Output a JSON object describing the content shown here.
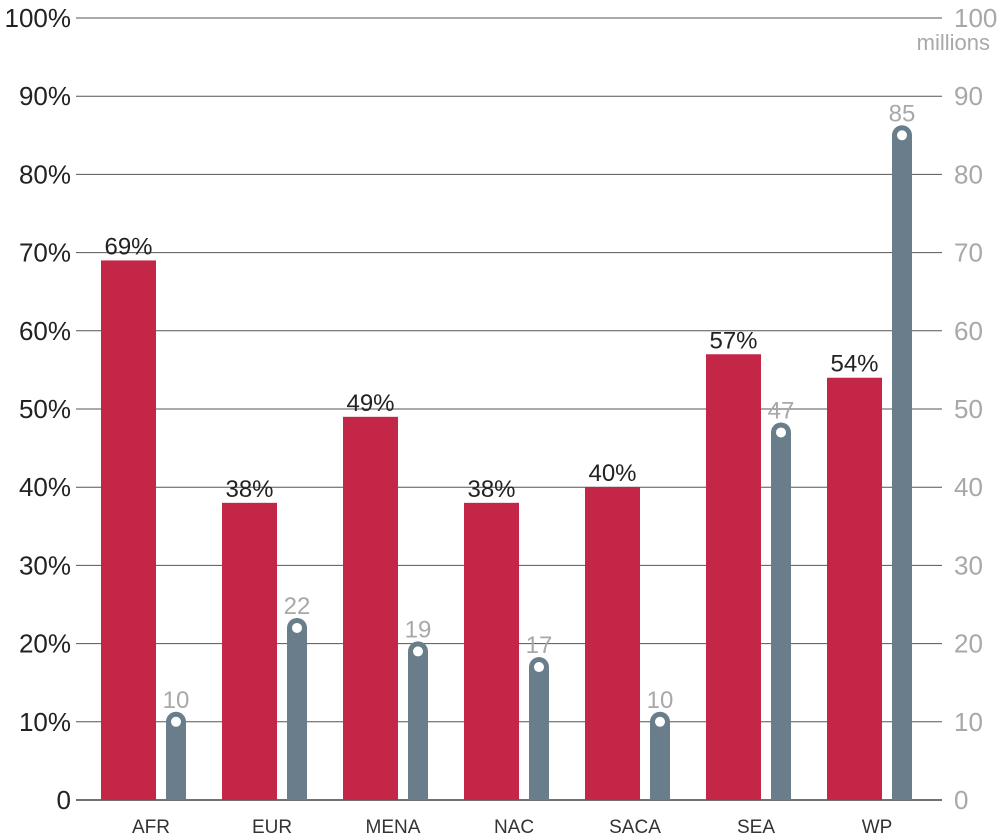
{
  "chart_data": {
    "type": "bar",
    "categories": [
      "AFR",
      "EUR",
      "MENA",
      "NAC",
      "SACA",
      "SEA",
      "WP"
    ],
    "series": [
      {
        "values": [
          69,
          38,
          49,
          38,
          40,
          57,
          54
        ],
        "labels": [
          "69%",
          "38%",
          "49%",
          "38%",
          "40%",
          "57%",
          "54%"
        ],
        "color": "#c42647",
        "axis": "left"
      },
      {
        "values": [
          10,
          22,
          19,
          17,
          10,
          47,
          85
        ],
        "labels": [
          "10",
          "22",
          "19",
          "17",
          "10",
          "47",
          "85"
        ],
        "color": "#6a7d8a",
        "axis": "right"
      }
    ],
    "left_axis": {
      "ylim": [
        0,
        100
      ],
      "tick_labels": [
        "0",
        "10%",
        "20%",
        "30%",
        "40%",
        "50%",
        "60%",
        "70%",
        "80%",
        "90%",
        "100%"
      ]
    },
    "right_axis": {
      "ylim": [
        0,
        100
      ],
      "tick_labels": [
        "0",
        "10",
        "20",
        "30",
        "40",
        "50",
        "60",
        "70",
        "80",
        "90",
        "100"
      ],
      "unit": "millions"
    },
    "grid": true
  }
}
